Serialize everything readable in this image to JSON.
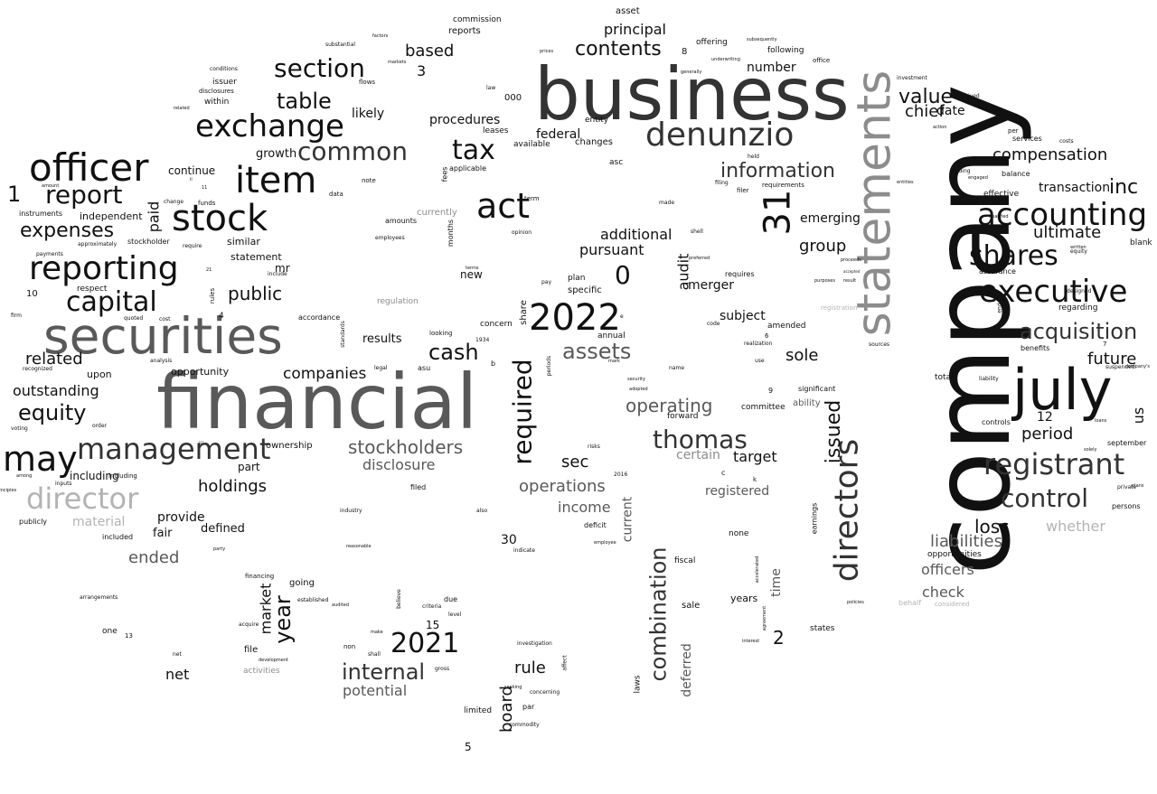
{
  "words": [
    "company",
    "business",
    "financial",
    "securities",
    "statements",
    "july",
    "officer",
    "item",
    "stock",
    "denunzio",
    "exchange",
    "2022",
    "reporting",
    "act",
    "accounting",
    "executive",
    "may",
    "registrant",
    "management",
    "directors",
    "tax",
    "31",
    "shares",
    "acquisition",
    "section",
    "director",
    "capital",
    "common",
    "control",
    "report",
    "information",
    "equity",
    "required",
    "expenses",
    "thomas",
    "assets",
    "combination",
    "table",
    "cash",
    "stockholders",
    "2021",
    "internal",
    "value",
    "contents",
    "ultimate",
    "inc",
    "1",
    "0",
    "chief",
    "public",
    "holdings",
    "operating",
    "operations",
    "compensation",
    "future",
    "period",
    "related",
    "outstanding",
    "issued",
    "sole",
    "loss",
    "liabilities",
    "officers",
    "additional",
    "based",
    "principal",
    "group",
    "subject",
    "audit",
    "income",
    "disclosure",
    "ended",
    "board",
    "potential",
    "net",
    "year",
    "rule",
    "sec",
    "target",
    "emerging",
    "pursuant",
    "check",
    "companies",
    "procedures",
    "federal",
    "likely",
    "transaction",
    "material",
    "whether",
    "certain",
    "registered",
    "paid",
    "market",
    "time",
    "current",
    "deferred",
    "number",
    "merger",
    "date",
    "12",
    "us",
    "2",
    "provide",
    "defined",
    "fair",
    "growth",
    "continue",
    "independent",
    "similar",
    "statement",
    "mr",
    "results",
    "including",
    "part",
    "upon",
    "opportunity",
    "ownership",
    "currently",
    "regulation",
    "file",
    "going",
    "new",
    "30",
    "15",
    "5",
    "3",
    "8",
    "asset",
    "reports",
    "commission",
    "leases",
    "entity",
    "changes",
    "available",
    "asc",
    "fees",
    "applicable",
    "plan",
    "specific",
    "share",
    "annual",
    "sale",
    "years",
    "fiscal",
    "laws",
    "amended",
    "committee",
    "forward",
    "ability",
    "opportunities",
    "total",
    "regarding",
    "blank",
    "assurance",
    "balance",
    "effective",
    "september",
    "persons",
    "concern",
    "accordance",
    "respect",
    "10",
    "4",
    "including",
    "order",
    "voting",
    "funds",
    "instruments",
    "data",
    "note",
    "amounts",
    "employees",
    "months",
    "term",
    "opinion",
    "requirements",
    "filer",
    "offering",
    "following",
    "issuer",
    "within",
    "disclosures",
    "substantial",
    "markets",
    "flows",
    "000",
    "law",
    "factors",
    "prices",
    "subsequently",
    "office",
    "none",
    "significant",
    "notes",
    "controls",
    "liability",
    "services",
    "costs",
    "per",
    "action",
    "entities",
    "trading",
    "received",
    "stockholder",
    "approximately",
    "change",
    "require",
    "firm",
    "quoted",
    "cost",
    "analysis",
    "recognized",
    "legal",
    "asu",
    "b",
    "1934",
    "looking",
    "periods",
    "mark",
    "security",
    "adopted",
    "risks",
    "2016",
    "filed",
    "industry",
    "also",
    "indicate",
    "deficit",
    "employee",
    "investigation",
    "affect",
    "concerning",
    "par",
    "limited",
    "commodity",
    "criteria",
    "level",
    "due",
    "believe",
    "established",
    "audited",
    "non",
    "shall",
    "net",
    "one",
    "13",
    "arrangements",
    "acquire",
    "development",
    "activities",
    "financing",
    "reasonable",
    "earnings",
    "states",
    "interest",
    "accelerated",
    "agreement",
    "policies",
    "behalf",
    "considered",
    "private",
    "plans",
    "seeking",
    "gross",
    "make",
    "designed",
    "purposes",
    "proceeds",
    "result",
    "accepted",
    "registration",
    "end",
    "benefits",
    "sources",
    "code",
    "realization",
    "use",
    "name",
    "requires",
    "preferred",
    "shell",
    "made",
    "held",
    "filing",
    "generally",
    "underwriting",
    "pay",
    "terms",
    "include",
    "party",
    "included",
    "publicly",
    "inputs",
    "among",
    "payments",
    "amount",
    "related",
    "conditions",
    "standards",
    "rules",
    "k",
    "c",
    "9",
    "6",
    "7",
    "e",
    "investment",
    "suspended",
    "loans",
    "company's",
    "solely",
    "equity",
    "written",
    "engaged",
    "qualified",
    "iii",
    "ii",
    "11",
    "21",
    "principles"
  ],
  "colors": {
    "dark": "#111111",
    "mid": "#333333",
    "grey": "#595959",
    "light": "#8c8c8c",
    "pale": "#b3b3b3"
  }
}
